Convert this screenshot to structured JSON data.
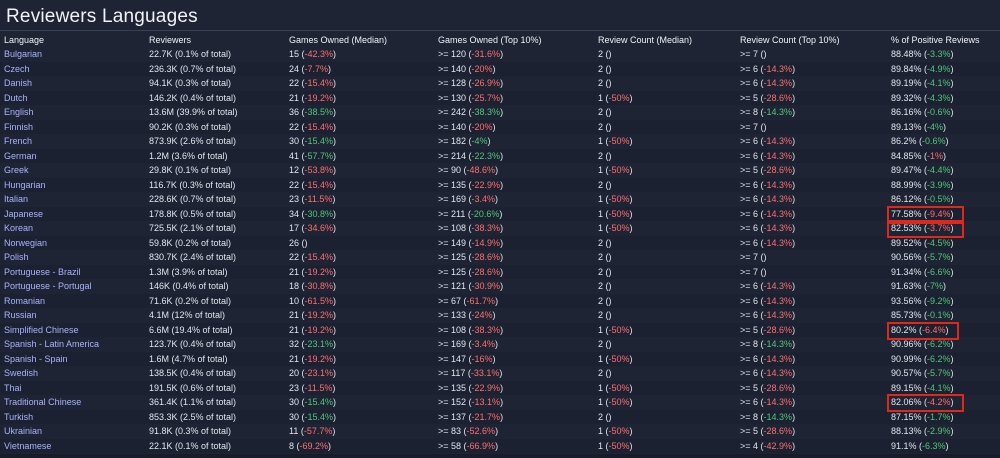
{
  "page": {
    "title": "Reviewers Languages"
  },
  "table": {
    "columns": [
      "Language",
      "Reviewers",
      "Games Owned (Median)",
      "Games Owned (Top 10%)",
      "Review Count (Median)",
      "Review Count (Top 10%)",
      "% of Positive Reviews"
    ],
    "rows": [
      {
        "language": "Bulgarian",
        "reviewers": "22.7K (0.1% of total)",
        "gom_v": "15",
        "gom_d": "-42.3%",
        "gom_s": "neg",
        "got_v": ">= 120",
        "got_d": "-31.6%",
        "got_s": "neg",
        "rcm_v": "2",
        "rcm_d": "",
        "rcm_s": "",
        "rct_v": ">= 7",
        "rct_d": "",
        "rct_s": "",
        "pos_v": "88.48%",
        "pos_d": "-3.3%",
        "pos_s": "pos"
      },
      {
        "language": "Czech",
        "reviewers": "236.3K (0.7% of total)",
        "gom_v": "24",
        "gom_d": "-7.7%",
        "gom_s": "neg",
        "got_v": ">= 140",
        "got_d": "-20%",
        "got_s": "neg",
        "rcm_v": "2",
        "rcm_d": "",
        "rcm_s": "",
        "rct_v": ">= 6",
        "rct_d": "-14.3%",
        "rct_s": "neg",
        "pos_v": "89.84%",
        "pos_d": "-4.9%",
        "pos_s": "pos"
      },
      {
        "language": "Danish",
        "reviewers": "94.1K (0.3% of total)",
        "gom_v": "22",
        "gom_d": "-15.4%",
        "gom_s": "neg",
        "got_v": ">= 128",
        "got_d": "-26.9%",
        "got_s": "neg",
        "rcm_v": "2",
        "rcm_d": "",
        "rcm_s": "",
        "rct_v": ">= 6",
        "rct_d": "-14.3%",
        "rct_s": "neg",
        "pos_v": "89.19%",
        "pos_d": "-4.1%",
        "pos_s": "pos"
      },
      {
        "language": "Dutch",
        "reviewers": "146.2K (0.4% of total)",
        "gom_v": "21",
        "gom_d": "-19.2%",
        "gom_s": "neg",
        "got_v": ">= 130",
        "got_d": "-25.7%",
        "got_s": "neg",
        "rcm_v": "1",
        "rcm_d": "-50%",
        "rcm_s": "neg",
        "rct_v": ">= 5",
        "rct_d": "-28.6%",
        "rct_s": "neg",
        "pos_v": "89.32%",
        "pos_d": "-4.3%",
        "pos_s": "pos"
      },
      {
        "language": "English",
        "reviewers": "13.6M (39.9% of total)",
        "gom_v": "36",
        "gom_d": "-38.5%",
        "gom_s": "pos",
        "got_v": ">= 242",
        "got_d": "-38.3%",
        "got_s": "pos",
        "rcm_v": "2",
        "rcm_d": "",
        "rcm_s": "",
        "rct_v": ">= 8",
        "rct_d": "-14.3%",
        "rct_s": "pos",
        "pos_v": "86.16%",
        "pos_d": "-0.6%",
        "pos_s": "pos"
      },
      {
        "language": "Finnish",
        "reviewers": "90.2K (0.3% of total)",
        "gom_v": "22",
        "gom_d": "-15.4%",
        "gom_s": "neg",
        "got_v": ">= 140",
        "got_d": "-20%",
        "got_s": "neg",
        "rcm_v": "2",
        "rcm_d": "",
        "rcm_s": "",
        "rct_v": ">= 7",
        "rct_d": "",
        "rct_s": "",
        "pos_v": "89.13%",
        "pos_d": "-4%",
        "pos_s": "pos"
      },
      {
        "language": "French",
        "reviewers": "873.9K (2.6% of total)",
        "gom_v": "30",
        "gom_d": "-15.4%",
        "gom_s": "pos",
        "got_v": ">= 182",
        "got_d": "-4%",
        "got_s": "pos",
        "rcm_v": "1",
        "rcm_d": "-50%",
        "rcm_s": "neg",
        "rct_v": ">= 6",
        "rct_d": "-14.3%",
        "rct_s": "neg",
        "pos_v": "86.2%",
        "pos_d": "-0.6%",
        "pos_s": "pos"
      },
      {
        "language": "German",
        "reviewers": "1.2M (3.6% of total)",
        "gom_v": "41",
        "gom_d": "-57.7%",
        "gom_s": "pos",
        "got_v": ">= 214",
        "got_d": "-22.3%",
        "got_s": "pos",
        "rcm_v": "2",
        "rcm_d": "",
        "rcm_s": "",
        "rct_v": ">= 6",
        "rct_d": "-14.3%",
        "rct_s": "neg",
        "pos_v": "84.85%",
        "pos_d": "-1%",
        "pos_s": "neg"
      },
      {
        "language": "Greek",
        "reviewers": "29.8K (0.1% of total)",
        "gom_v": "12",
        "gom_d": "-53.8%",
        "gom_s": "neg",
        "got_v": ">= 90",
        "got_d": "-48.6%",
        "got_s": "neg",
        "rcm_v": "1",
        "rcm_d": "-50%",
        "rcm_s": "neg",
        "rct_v": ">= 5",
        "rct_d": "-28.6%",
        "rct_s": "neg",
        "pos_v": "89.47%",
        "pos_d": "-4.4%",
        "pos_s": "pos"
      },
      {
        "language": "Hungarian",
        "reviewers": "116.7K (0.3% of total)",
        "gom_v": "22",
        "gom_d": "-15.4%",
        "gom_s": "neg",
        "got_v": ">= 135",
        "got_d": "-22.9%",
        "got_s": "neg",
        "rcm_v": "2",
        "rcm_d": "",
        "rcm_s": "",
        "rct_v": ">= 6",
        "rct_d": "-14.3%",
        "rct_s": "neg",
        "pos_v": "88.99%",
        "pos_d": "-3.9%",
        "pos_s": "pos"
      },
      {
        "language": "Italian",
        "reviewers": "228.6K (0.7% of total)",
        "gom_v": "23",
        "gom_d": "-11.5%",
        "gom_s": "neg",
        "got_v": ">= 169",
        "got_d": "-3.4%",
        "got_s": "neg",
        "rcm_v": "1",
        "rcm_d": "-50%",
        "rcm_s": "neg",
        "rct_v": ">= 6",
        "rct_d": "-14.3%",
        "rct_s": "neg",
        "pos_v": "86.12%",
        "pos_d": "-0.5%",
        "pos_s": "pos"
      },
      {
        "language": "Japanese",
        "reviewers": "178.8K (0.5% of total)",
        "gom_v": "34",
        "gom_d": "-30.8%",
        "gom_s": "pos",
        "got_v": ">= 211",
        "got_d": "-20.6%",
        "got_s": "pos",
        "rcm_v": "1",
        "rcm_d": "-50%",
        "rcm_s": "neg",
        "rct_v": ">= 6",
        "rct_d": "-14.3%",
        "rct_s": "neg",
        "pos_v": "77.58%",
        "pos_d": "-9.4%",
        "pos_s": "neg"
      },
      {
        "language": "Korean",
        "reviewers": "725.5K (2.1% of total)",
        "gom_v": "17",
        "gom_d": "-34.6%",
        "gom_s": "neg",
        "got_v": ">= 108",
        "got_d": "-38.3%",
        "got_s": "neg",
        "rcm_v": "1",
        "rcm_d": "-50%",
        "rcm_s": "neg",
        "rct_v": ">= 6",
        "rct_d": "-14.3%",
        "rct_s": "neg",
        "pos_v": "82.53%",
        "pos_d": "-3.7%",
        "pos_s": "neg"
      },
      {
        "language": "Norwegian",
        "reviewers": "59.8K (0.2% of total)",
        "gom_v": "26",
        "gom_d": "",
        "gom_s": "",
        "got_v": ">= 149",
        "got_d": "-14.9%",
        "got_s": "neg",
        "rcm_v": "2",
        "rcm_d": "",
        "rcm_s": "",
        "rct_v": ">= 6",
        "rct_d": "-14.3%",
        "rct_s": "neg",
        "pos_v": "89.52%",
        "pos_d": "-4.5%",
        "pos_s": "pos"
      },
      {
        "language": "Polish",
        "reviewers": "830.7K (2.4% of total)",
        "gom_v": "22",
        "gom_d": "-15.4%",
        "gom_s": "neg",
        "got_v": ">= 125",
        "got_d": "-28.6%",
        "got_s": "neg",
        "rcm_v": "2",
        "rcm_d": "",
        "rcm_s": "",
        "rct_v": ">= 7",
        "rct_d": "",
        "rct_s": "",
        "pos_v": "90.56%",
        "pos_d": "-5.7%",
        "pos_s": "pos"
      },
      {
        "language": "Portuguese - Brazil",
        "reviewers": "1.3M (3.9% of total)",
        "gom_v": "21",
        "gom_d": "-19.2%",
        "gom_s": "neg",
        "got_v": ">= 125",
        "got_d": "-28.6%",
        "got_s": "neg",
        "rcm_v": "2",
        "rcm_d": "",
        "rcm_s": "",
        "rct_v": ">= 7",
        "rct_d": "",
        "rct_s": "",
        "pos_v": "91.34%",
        "pos_d": "-6.6%",
        "pos_s": "pos"
      },
      {
        "language": "Portuguese - Portugal",
        "reviewers": "146K (0.4% of total)",
        "gom_v": "18",
        "gom_d": "-30.8%",
        "gom_s": "neg",
        "got_v": ">= 121",
        "got_d": "-30.9%",
        "got_s": "neg",
        "rcm_v": "2",
        "rcm_d": "",
        "rcm_s": "",
        "rct_v": ">= 6",
        "rct_d": "-14.3%",
        "rct_s": "neg",
        "pos_v": "91.63%",
        "pos_d": "-7%",
        "pos_s": "pos"
      },
      {
        "language": "Romanian",
        "reviewers": "71.6K (0.2% of total)",
        "gom_v": "10",
        "gom_d": "-61.5%",
        "gom_s": "neg",
        "got_v": ">= 67",
        "got_d": "-61.7%",
        "got_s": "neg",
        "rcm_v": "2",
        "rcm_d": "",
        "rcm_s": "",
        "rct_v": ">= 6",
        "rct_d": "-14.3%",
        "rct_s": "neg",
        "pos_v": "93.56%",
        "pos_d": "-9.2%",
        "pos_s": "pos"
      },
      {
        "language": "Russian",
        "reviewers": "4.1M (12% of total)",
        "gom_v": "21",
        "gom_d": "-19.2%",
        "gom_s": "neg",
        "got_v": ">= 133",
        "got_d": "-24%",
        "got_s": "neg",
        "rcm_v": "2",
        "rcm_d": "",
        "rcm_s": "",
        "rct_v": ">= 6",
        "rct_d": "-14.3%",
        "rct_s": "neg",
        "pos_v": "85.73%",
        "pos_d": "-0.1%",
        "pos_s": "pos"
      },
      {
        "language": "Simplified Chinese",
        "reviewers": "6.6M (19.4% of total)",
        "gom_v": "21",
        "gom_d": "-19.2%",
        "gom_s": "neg",
        "got_v": ">= 108",
        "got_d": "-38.3%",
        "got_s": "neg",
        "rcm_v": "1",
        "rcm_d": "-50%",
        "rcm_s": "neg",
        "rct_v": ">= 5",
        "rct_d": "-28.6%",
        "rct_s": "neg",
        "pos_v": "80.2%",
        "pos_d": "-6.4%",
        "pos_s": "neg"
      },
      {
        "language": "Spanish - Latin America",
        "reviewers": "123.7K (0.4% of total)",
        "gom_v": "32",
        "gom_d": "-23.1%",
        "gom_s": "pos",
        "got_v": ">= 169",
        "got_d": "-3.4%",
        "got_s": "neg",
        "rcm_v": "2",
        "rcm_d": "",
        "rcm_s": "",
        "rct_v": ">= 8",
        "rct_d": "-14.3%",
        "rct_s": "pos",
        "pos_v": "90.96%",
        "pos_d": "-6.2%",
        "pos_s": "pos"
      },
      {
        "language": "Spanish - Spain",
        "reviewers": "1.6M (4.7% of total)",
        "gom_v": "21",
        "gom_d": "-19.2%",
        "gom_s": "neg",
        "got_v": ">= 147",
        "got_d": "-16%",
        "got_s": "neg",
        "rcm_v": "1",
        "rcm_d": "-50%",
        "rcm_s": "neg",
        "rct_v": ">= 6",
        "rct_d": "-14.3%",
        "rct_s": "neg",
        "pos_v": "90.99%",
        "pos_d": "-6.2%",
        "pos_s": "pos"
      },
      {
        "language": "Swedish",
        "reviewers": "138.5K (0.4% of total)",
        "gom_v": "20",
        "gom_d": "-23.1%",
        "gom_s": "neg",
        "got_v": ">= 117",
        "got_d": "-33.1%",
        "got_s": "neg",
        "rcm_v": "2",
        "rcm_d": "",
        "rcm_s": "",
        "rct_v": ">= 6",
        "rct_d": "-14.3%",
        "rct_s": "neg",
        "pos_v": "90.57%",
        "pos_d": "-5.7%",
        "pos_s": "pos"
      },
      {
        "language": "Thai",
        "reviewers": "191.5K (0.6% of total)",
        "gom_v": "23",
        "gom_d": "-11.5%",
        "gom_s": "neg",
        "got_v": ">= 135",
        "got_d": "-22.9%",
        "got_s": "neg",
        "rcm_v": "1",
        "rcm_d": "-50%",
        "rcm_s": "neg",
        "rct_v": ">= 5",
        "rct_d": "-28.6%",
        "rct_s": "neg",
        "pos_v": "89.15%",
        "pos_d": "-4.1%",
        "pos_s": "pos"
      },
      {
        "language": "Traditional Chinese",
        "reviewers": "361.4K (1.1% of total)",
        "gom_v": "30",
        "gom_d": "-15.4%",
        "gom_s": "pos",
        "got_v": ">= 152",
        "got_d": "-13.1%",
        "got_s": "neg",
        "rcm_v": "1",
        "rcm_d": "-50%",
        "rcm_s": "neg",
        "rct_v": ">= 6",
        "rct_d": "-14.3%",
        "rct_s": "neg",
        "pos_v": "82.06%",
        "pos_d": "-4.2%",
        "pos_s": "neg"
      },
      {
        "language": "Turkish",
        "reviewers": "853.3K (2.5% of total)",
        "gom_v": "30",
        "gom_d": "-15.4%",
        "gom_s": "pos",
        "got_v": ">= 137",
        "got_d": "-21.7%",
        "got_s": "neg",
        "rcm_v": "2",
        "rcm_d": "",
        "rcm_s": "",
        "rct_v": ">= 8",
        "rct_d": "-14.3%",
        "rct_s": "pos",
        "pos_v": "87.15%",
        "pos_d": "-1.7%",
        "pos_s": "pos"
      },
      {
        "language": "Ukrainian",
        "reviewers": "91.8K (0.3% of total)",
        "gom_v": "11",
        "gom_d": "-57.7%",
        "gom_s": "neg",
        "got_v": ">= 83",
        "got_d": "-52.6%",
        "got_s": "neg",
        "rcm_v": "1",
        "rcm_d": "-50%",
        "rcm_s": "neg",
        "rct_v": ">= 5",
        "rct_d": "-28.6%",
        "rct_s": "neg",
        "pos_v": "88.13%",
        "pos_d": "-2.9%",
        "pos_s": "pos"
      },
      {
        "language": "Vietnamese",
        "reviewers": "22.1K (0.1% of total)",
        "gom_v": "8",
        "gom_d": "-69.2%",
        "gom_s": "neg",
        "got_v": ">= 58",
        "got_d": "-66.9%",
        "got_s": "neg",
        "rcm_v": "1",
        "rcm_d": "-50%",
        "rcm_s": "neg",
        "rct_v": ">= 4",
        "rct_d": "-42.9%",
        "rct_s": "neg",
        "pos_v": "91.1%",
        "pos_d": "-6.3%",
        "pos_s": "pos"
      }
    ],
    "highlighted_languages": [
      "Japanese",
      "Korean",
      "Simplified Chinese",
      "Traditional Chinese"
    ]
  },
  "colors": {
    "background": "#1e2433",
    "link": "#a7b4ff",
    "negative": "#ff6f6f",
    "positive": "#52c77a",
    "highlight_box": "#e0271b"
  }
}
